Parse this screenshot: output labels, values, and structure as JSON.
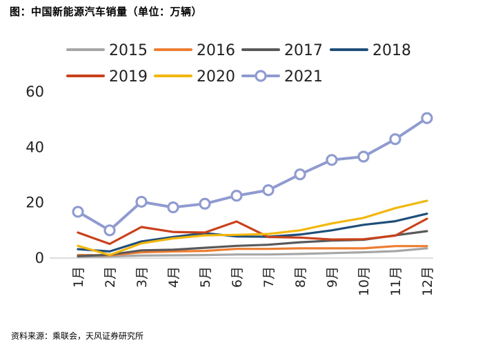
{
  "header": {
    "title": "图：中国新能源汽车销量（单位：万辆）"
  },
  "footer": {
    "source": "资料来源：乘联会，天风证券研究所"
  },
  "chart_data": {
    "type": "line",
    "title": "图：中国新能源汽车销量（单位：万辆）",
    "xlabel": "",
    "ylabel": "",
    "categories": [
      "1月",
      "2月",
      "3月",
      "4月",
      "5月",
      "6月",
      "7月",
      "8月",
      "9月",
      "10月",
      "11月",
      "12月"
    ],
    "ylim": [
      0,
      60
    ],
    "yticks": [
      0,
      20,
      40,
      60
    ],
    "grid": false,
    "legend_position": "top",
    "series": [
      {
        "name": "2015",
        "color": "#a6a6a6",
        "markers": false,
        "values": [
          0.5,
          0.6,
          0.9,
          1.0,
          1.1,
          1.3,
          1.3,
          1.5,
          1.8,
          2.1,
          2.5,
          3.5
        ]
      },
      {
        "name": "2016",
        "color": "#ed7d31",
        "markers": false,
        "values": [
          1.1,
          1.0,
          2.1,
          2.4,
          2.6,
          3.3,
          3.3,
          3.5,
          3.5,
          3.5,
          4.3,
          4.3
        ]
      },
      {
        "name": "2017",
        "color": "#595959",
        "markers": false,
        "values": [
          0.7,
          1.2,
          2.8,
          3.0,
          3.7,
          4.4,
          4.8,
          5.7,
          6.3,
          6.6,
          8.2,
          9.7
        ]
      },
      {
        "name": "2018",
        "color": "#1f4e79",
        "markers": false,
        "values": [
          3.2,
          2.4,
          6.0,
          7.6,
          9.0,
          7.8,
          7.7,
          8.5,
          10.0,
          12.0,
          13.3,
          16.0
        ]
      },
      {
        "name": "2019",
        "color": "#c9411b",
        "markers": false,
        "values": [
          9.2,
          5.1,
          11.2,
          9.4,
          9.2,
          13.2,
          7.6,
          7.4,
          6.7,
          6.8,
          8.1,
          14.2
        ]
      },
      {
        "name": "2020",
        "color": "#f2b70d",
        "markers": false,
        "values": [
          4.4,
          1.1,
          5.3,
          7.1,
          8.2,
          8.4,
          8.7,
          10.0,
          12.5,
          14.5,
          18.0,
          20.7
        ]
      },
      {
        "name": "2021",
        "color": "#8f9bd0",
        "markers": true,
        "values": [
          16.7,
          10.0,
          20.3,
          18.3,
          19.6,
          22.5,
          24.5,
          30.2,
          35.4,
          36.6,
          42.9,
          50.5
        ]
      }
    ]
  }
}
